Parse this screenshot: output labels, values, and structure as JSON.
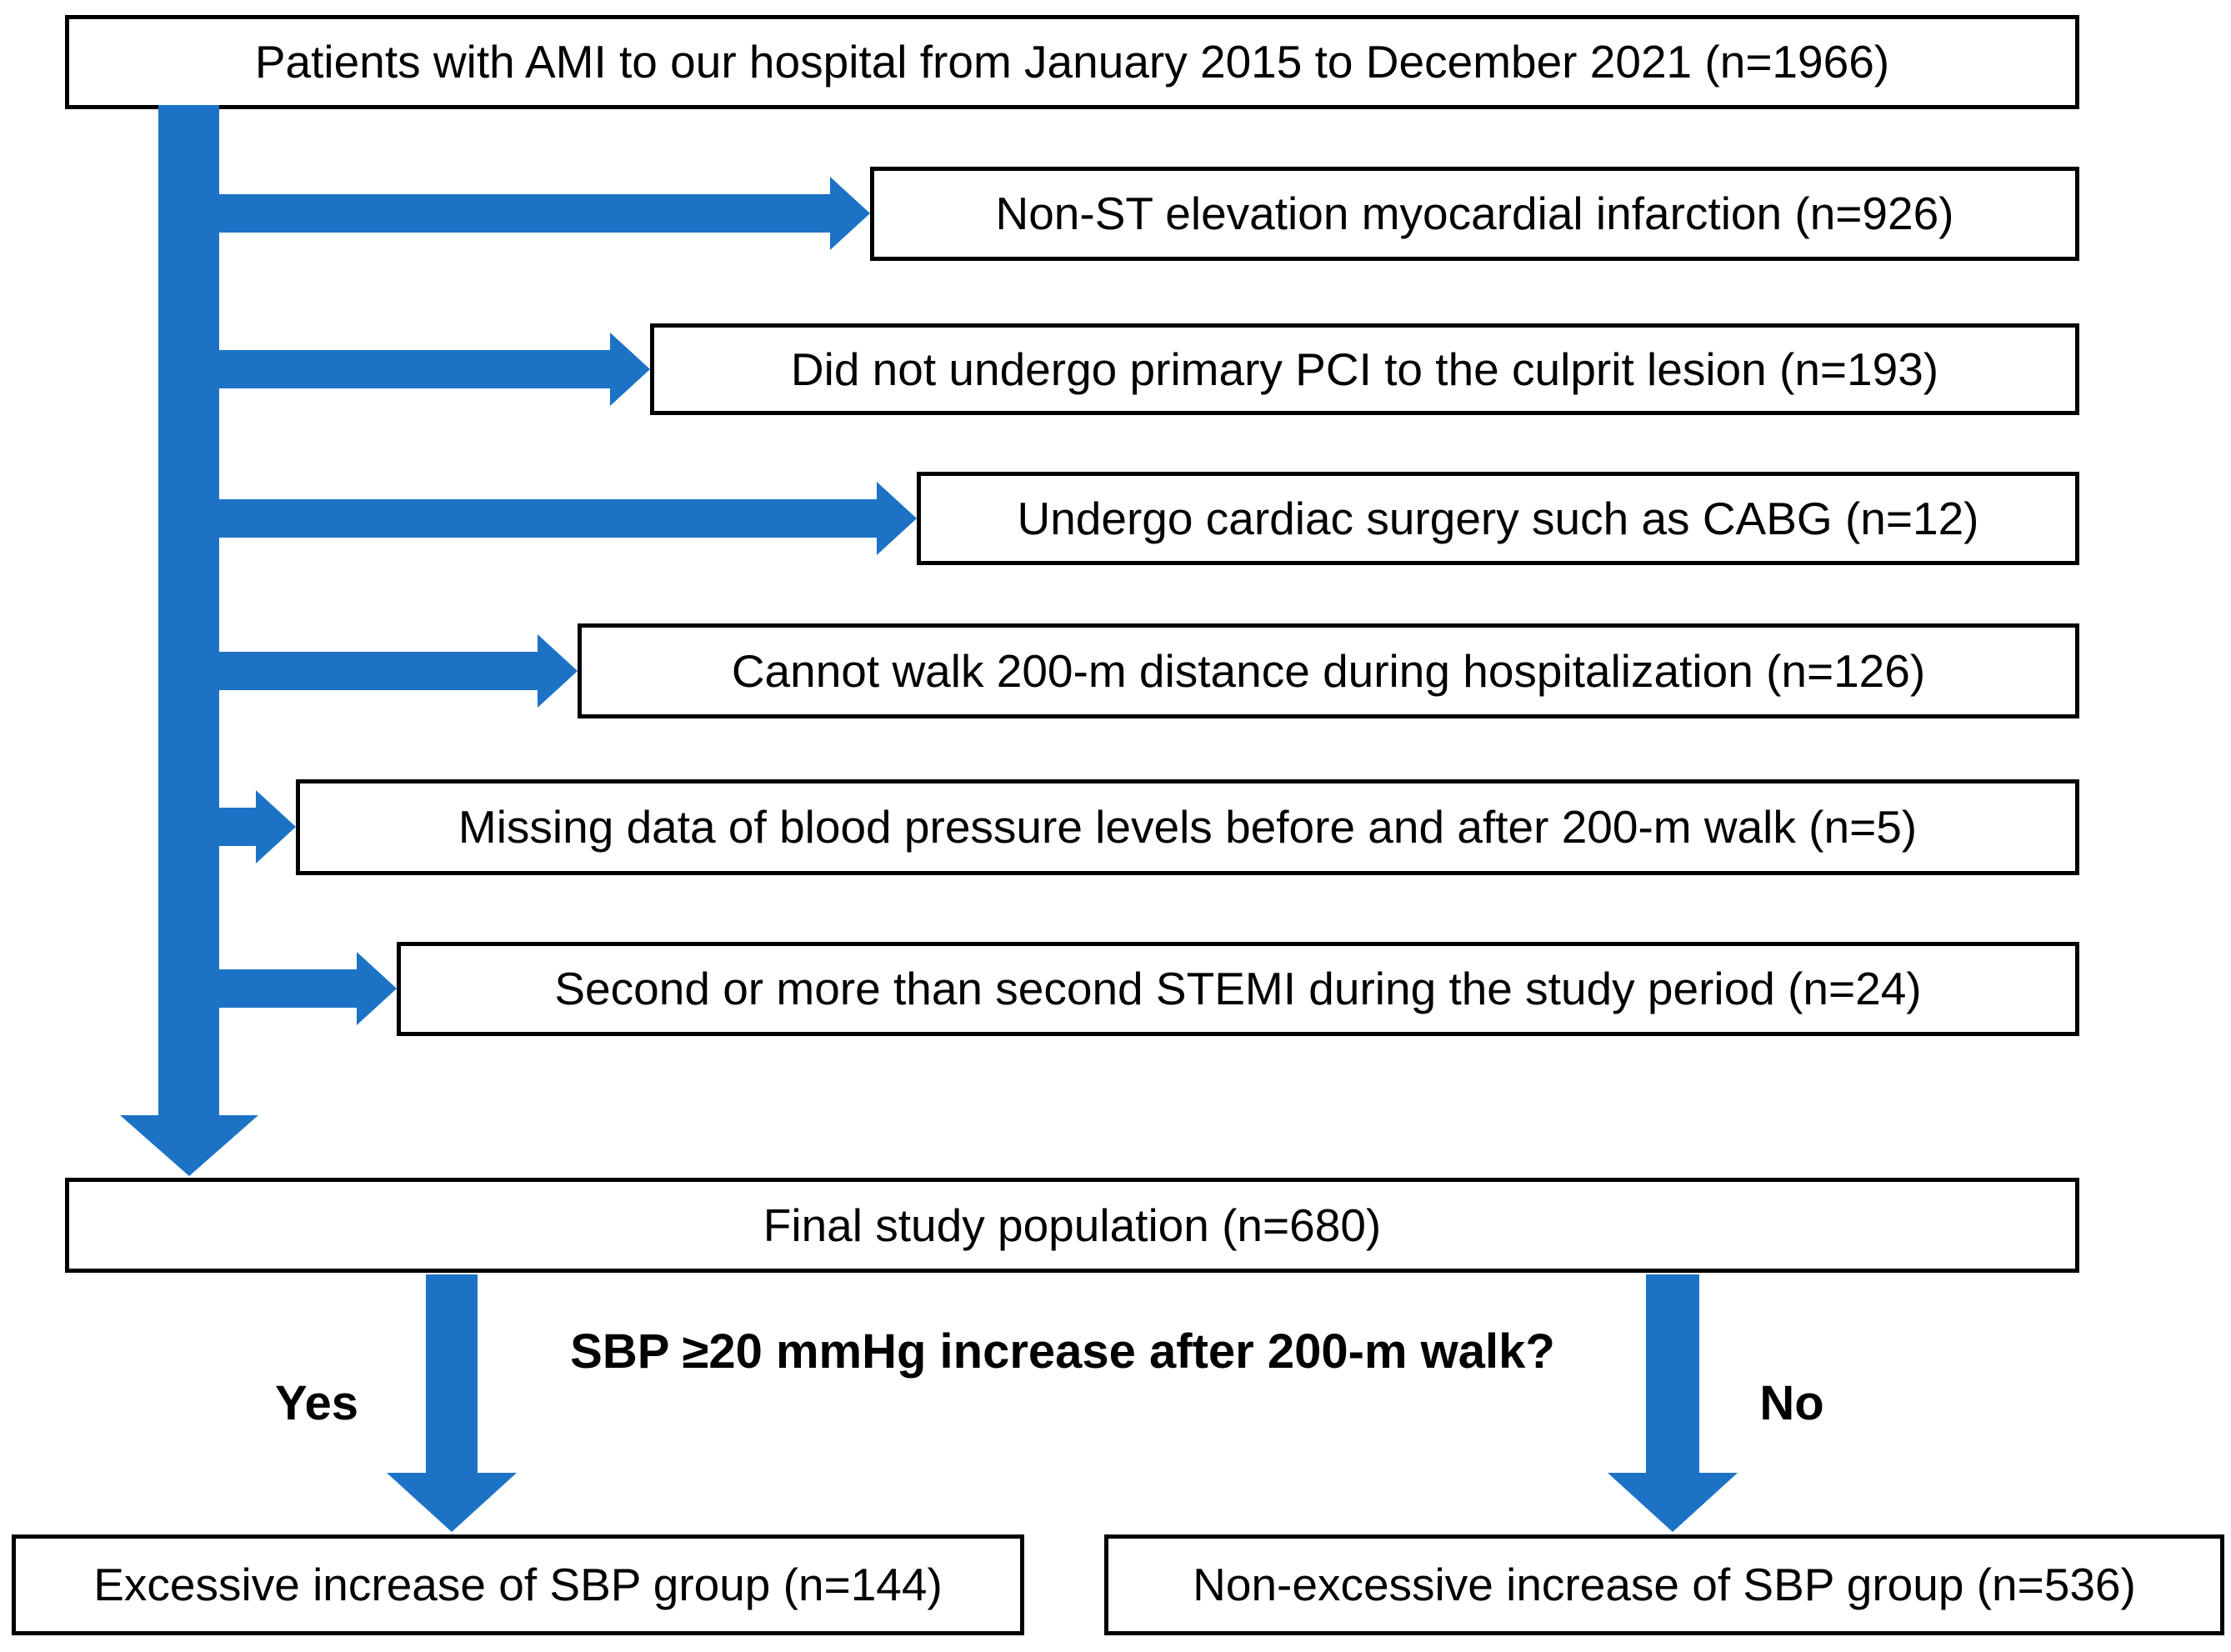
{
  "diagram": {
    "type": "patient-flow-chart",
    "colors": {
      "arrow": "#1C73C6",
      "box_border": "#000000",
      "background": "#FFFFFF",
      "text": "#000000"
    },
    "source": {
      "label": "Patients with AMI to our hospital from January 2015 to December 2021 (n=1966)",
      "n": 1966
    },
    "exclusions": [
      {
        "label": "Non-ST elevation myocardial infarction (n=926)",
        "n": 926
      },
      {
        "label": "Did not undergo primary PCI to the culprit lesion (n=193)",
        "n": 193
      },
      {
        "label": "Undergo cardiac surgery such as CABG (n=12)",
        "n": 12
      },
      {
        "label": "Cannot walk 200-m distance during hospitalization (n=126)",
        "n": 126
      },
      {
        "label": "Missing data of blood pressure levels before and after 200-m walk (n=5)",
        "n": 5
      },
      {
        "label": "Second or more than second STEMI during the study period (n=24)",
        "n": 24
      }
    ],
    "final": {
      "label": "Final study population (n=680)",
      "n": 680
    },
    "question": "SBP ≥20 mmHg increase after 200-m walk?",
    "branch_yes": "Yes",
    "branch_no": "No",
    "outcomes": {
      "left": {
        "label": "Excessive increase of SBP group (n=144)",
        "n": 144
      },
      "right": {
        "label": "Non-excessive increase of SBP group (n=536)",
        "n": 536
      }
    }
  }
}
